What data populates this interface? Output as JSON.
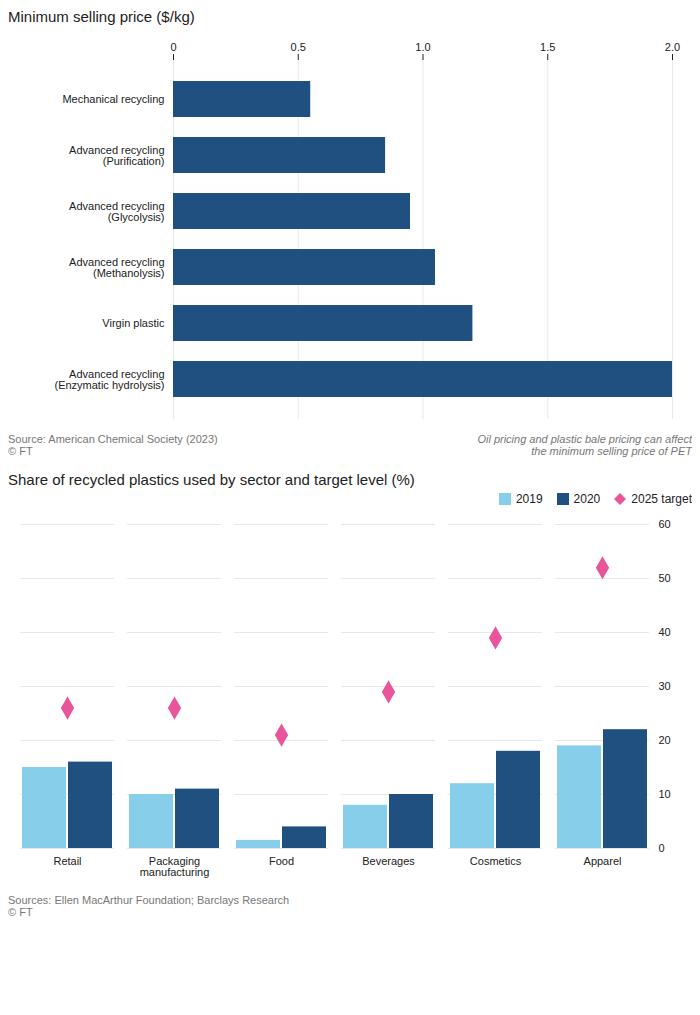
{
  "chart_data": [
    {
      "type": "bar",
      "orientation": "horizontal",
      "title": "Minimum selling price ($/kg)",
      "categories": [
        "Mechanical recycling",
        "Advanced recycling\n(Purification)",
        "Advanced recycling\n(Glycolysis)",
        "Advanced recycling\n(Methanolysis)",
        "Virgin plastic",
        "Advanced recycling\n(Enzymatic hydrolysis)"
      ],
      "values": [
        0.55,
        0.85,
        0.95,
        1.05,
        1.2,
        2.0
      ],
      "color": "#1f5080",
      "xlim": [
        0,
        2.0
      ],
      "xticks": [
        0,
        0.5,
        {
          "value": 1.0,
          "label": "1.0"
        },
        1.5,
        {
          "value": 2.0,
          "label": "2.0"
        }
      ],
      "grid": true,
      "source": [
        "Source: American Chemical Society (2023)",
        "© FT"
      ],
      "note": [
        "Oil pricing and plastic bale pricing can affect",
        "the minimum selling price of PET"
      ]
    },
    {
      "type": "bar",
      "title": "Share of recycled plastics used by sector and target level (%)",
      "categories": [
        "Retail",
        "Packaging\nmanufacturing",
        "Food",
        "Beverages",
        "Cosmetics",
        "Apparel"
      ],
      "series": [
        {
          "name": "2019",
          "type": "bar",
          "color": "#87ceeb",
          "values": [
            15,
            10,
            1.5,
            8,
            12,
            19
          ]
        },
        {
          "name": "2020",
          "type": "bar",
          "color": "#1f5080",
          "values": [
            16,
            11,
            4,
            10,
            18,
            22
          ]
        },
        {
          "name": "2025 target",
          "type": "scatter",
          "marker": "diamond",
          "color": "#e8559a",
          "values": [
            26,
            26,
            21,
            29,
            39,
            52
          ]
        }
      ],
      "ylim": [
        0,
        60
      ],
      "yticks": [
        0,
        10,
        20,
        30,
        40,
        50,
        60
      ],
      "grid": true,
      "legend": "upper right",
      "source": [
        "Sources: Ellen MacArthur Foundation; Barclays Research",
        "© FT"
      ]
    }
  ]
}
